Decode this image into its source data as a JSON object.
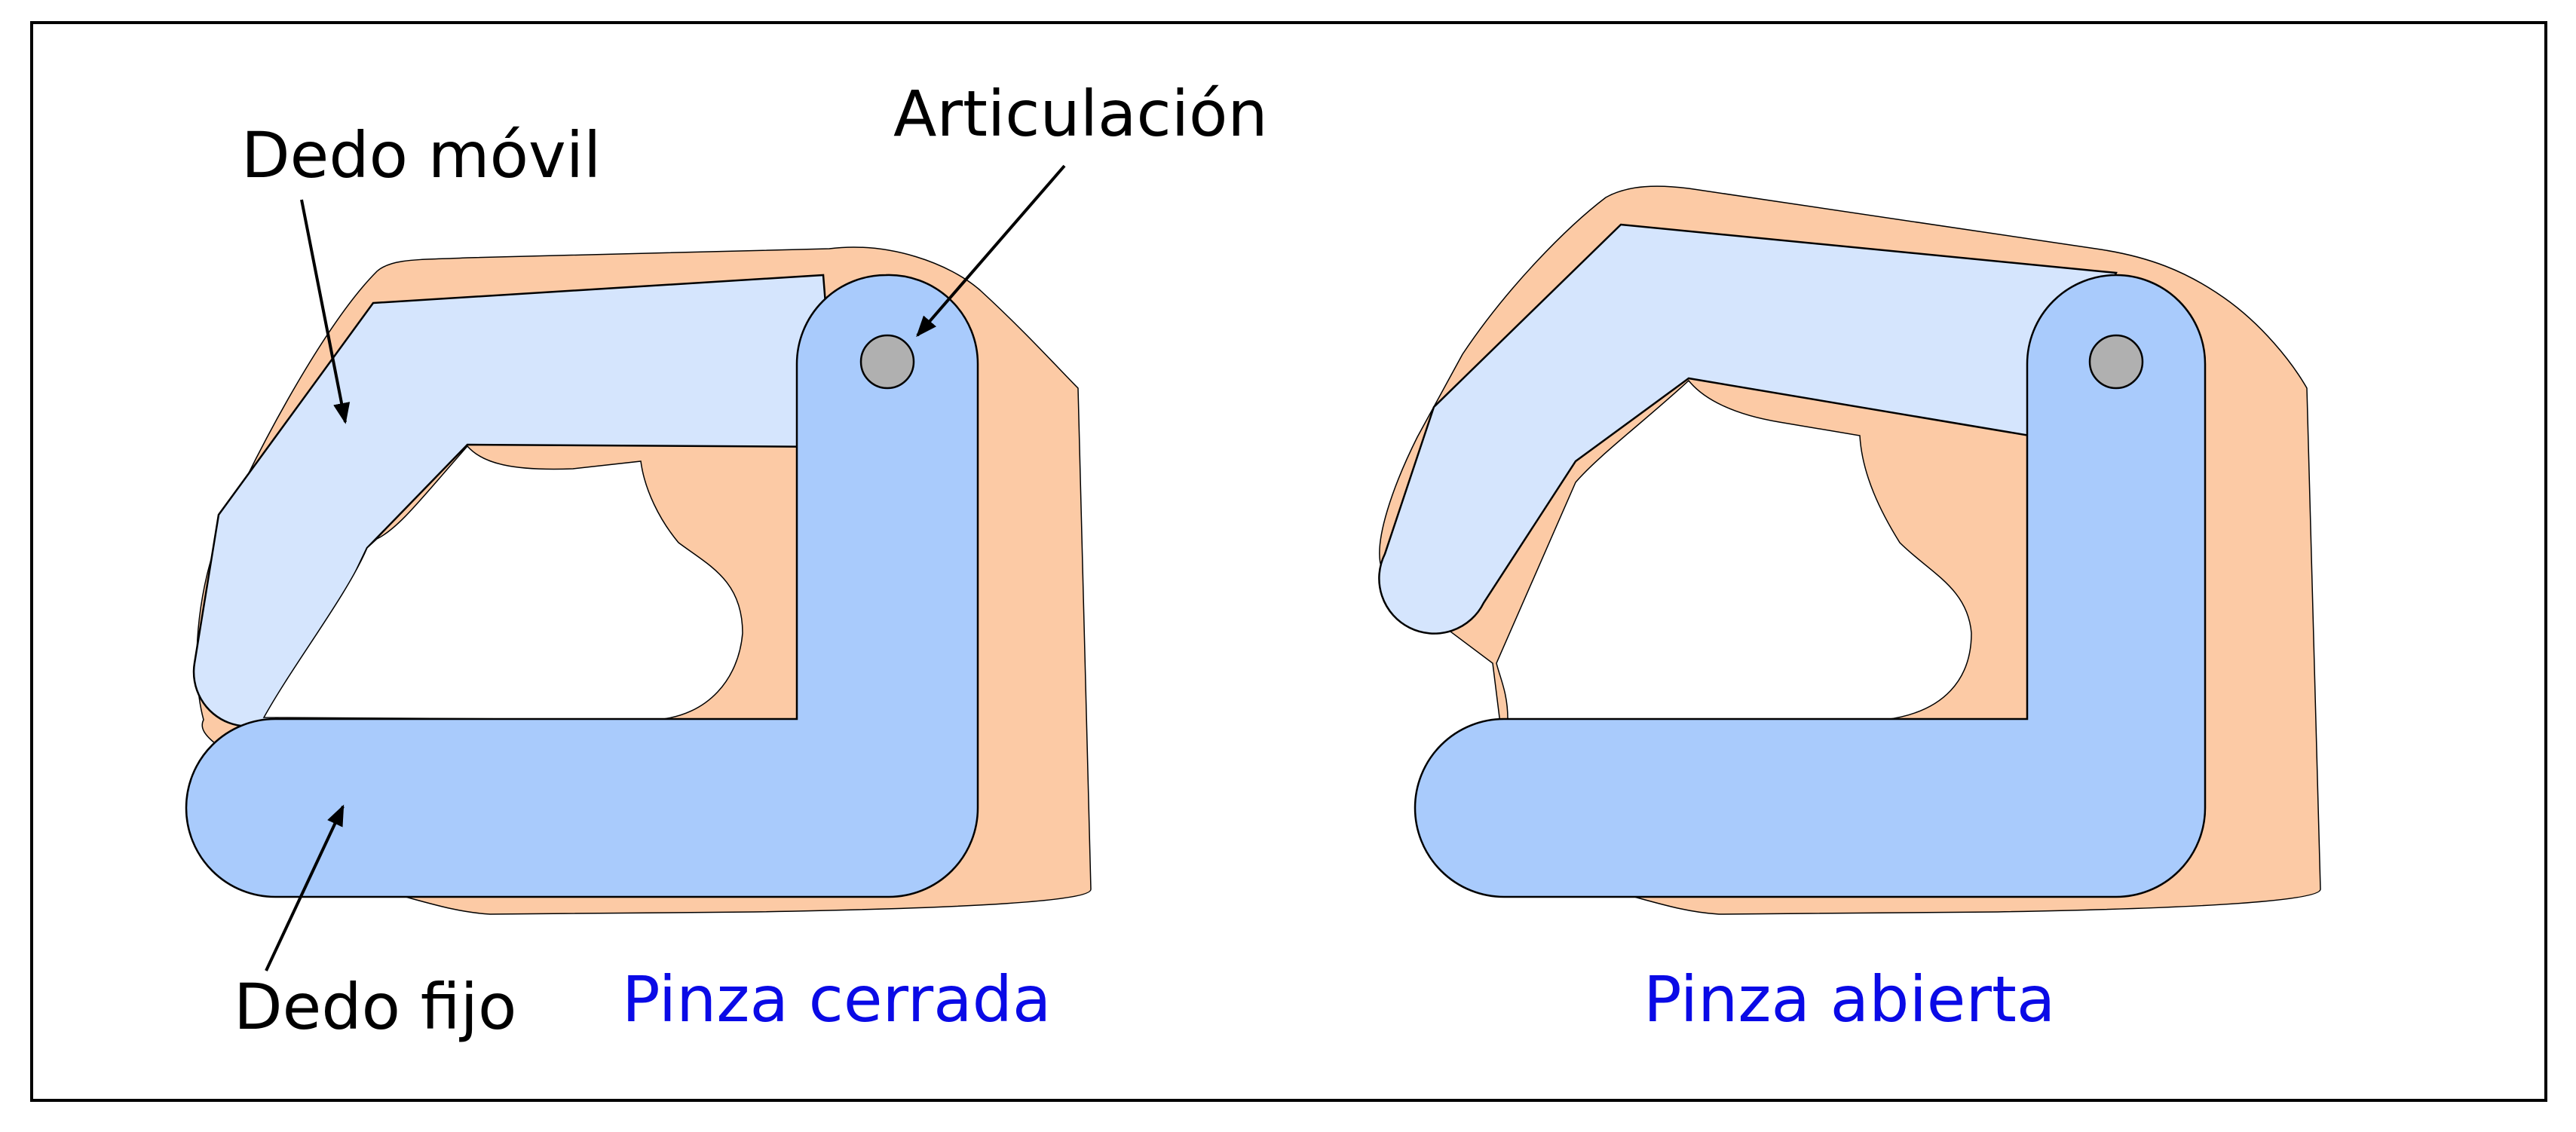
{
  "diagram": {
    "labels": {
      "moving_finger": "Dedo móvil",
      "joint": "Articulación",
      "fixed_finger": "Dedo fijo"
    },
    "captions": {
      "closed": "Pinza cerrada",
      "open": "Pinza abierta"
    },
    "colors": {
      "skin": "#FCCAA5",
      "moving_finger": "#D5E5FD",
      "fixed_finger": "#A9CBFC",
      "pivot": "#B0B0B0",
      "outline": "#000000",
      "caption": "#0A0AE6",
      "label": "#000000"
    }
  }
}
